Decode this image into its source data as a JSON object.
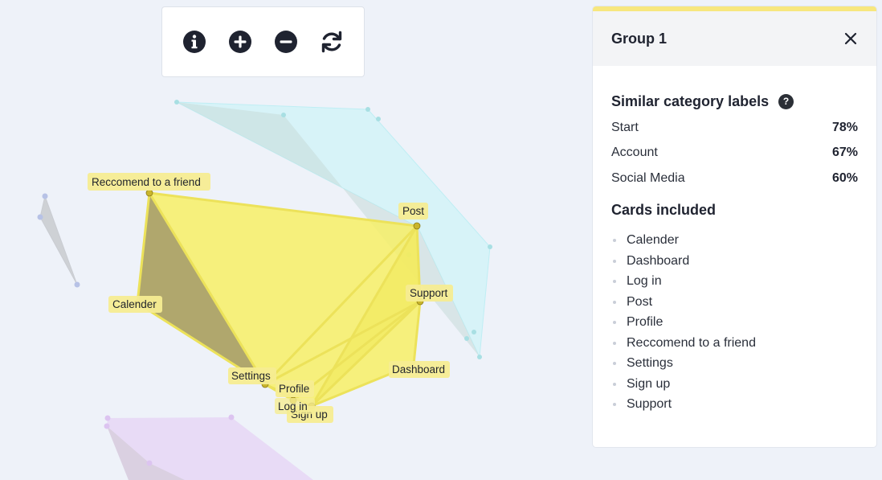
{
  "toolbar": {
    "info_icon": "info-icon",
    "zoom_in_icon": "plus-circle-icon",
    "zoom_out_icon": "minus-circle-icon",
    "reset_icon": "refresh-icon"
  },
  "diagram": {
    "highlight_color": "#f7f066",
    "labels": {
      "recommend": "Reccomend to a friend",
      "post": "Post",
      "support": "Support",
      "calender": "Calender",
      "settings": "Settings",
      "dashboard": "Dashboard",
      "profile": "Profile",
      "login": "Log in",
      "signup": "Sign up"
    }
  },
  "panel": {
    "title": "Group 1",
    "accent_color": "#f7e77e",
    "similar_title": "Similar category labels",
    "similar": [
      {
        "label": "Start",
        "pct": "78%"
      },
      {
        "label": "Account",
        "pct": "67%"
      },
      {
        "label": "Social Media",
        "pct": "60%"
      }
    ],
    "cards_title": "Cards included",
    "cards": [
      "Calender",
      "Dashboard",
      "Log in",
      "Post",
      "Profile",
      "Reccomend to a friend",
      "Settings",
      "Sign up",
      "Support"
    ]
  }
}
